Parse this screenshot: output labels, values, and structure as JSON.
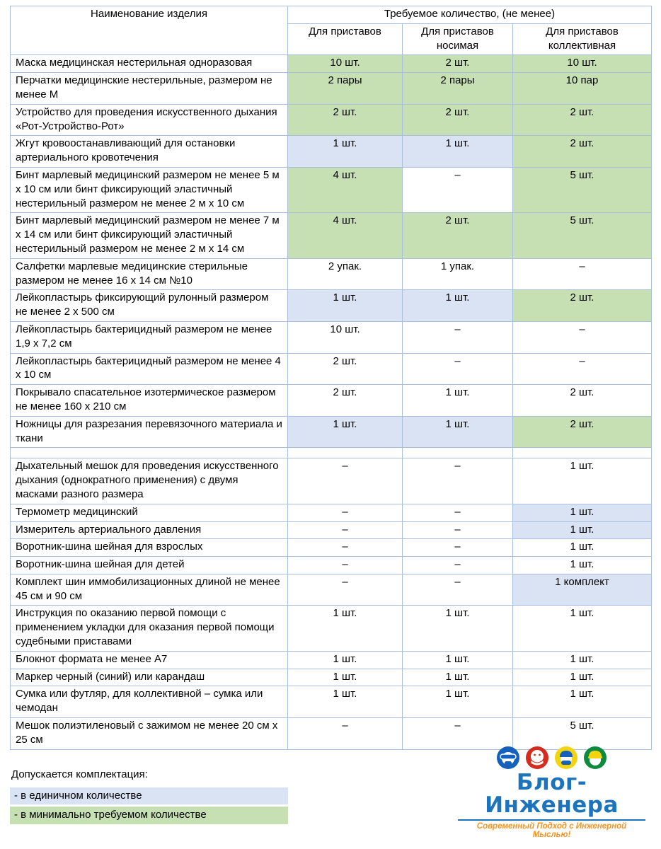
{
  "colors": {
    "cell_green": "#c6e0b4",
    "cell_blue": "#dae3f3",
    "table_border": "#a9bfde",
    "logo_blue": "#1c75bc",
    "logo_orange": "#f7941e"
  },
  "table": {
    "name_header": "Наименование изделия",
    "group_header": "Требуемое количество, (не менее)",
    "col_headers": [
      "Для приставов",
      "Для приставов носимая",
      "Для приставов коллективная"
    ],
    "rows": [
      {
        "name": "Маска медицинская нестерильная одноразовая",
        "cells": [
          [
            "10 шт.",
            "green"
          ],
          [
            "2 шт.",
            "green"
          ],
          [
            "10 шт.",
            "green"
          ]
        ]
      },
      {
        "name": "Перчатки медицинские нестерильные, размером не менее М",
        "cells": [
          [
            "2 пары",
            "green"
          ],
          [
            "2 пары",
            "green"
          ],
          [
            "10 пар",
            "green"
          ]
        ]
      },
      {
        "name": "Устройство для проведения искусственного дыхания «Рот-Устройство-Рот»",
        "cells": [
          [
            "2 шт.",
            "green"
          ],
          [
            "2 шт.",
            "green"
          ],
          [
            "2 шт.",
            "green"
          ]
        ]
      },
      {
        "name": "Жгут кровоостанавливающий для остановки артериального кровотечения",
        "cells": [
          [
            "1 шт.",
            "blue"
          ],
          [
            "1 шт.",
            "blue"
          ],
          [
            "2 шт.",
            "green"
          ]
        ]
      },
      {
        "name": "Бинт марлевый медицинский размером не менее 5 м х 10 см или бинт фиксирующий эластичный нестерильный размером не менее 2 м х 10 см",
        "cells": [
          [
            "4 шт.",
            "green"
          ],
          [
            "–",
            ""
          ],
          [
            "5 шт.",
            "green"
          ]
        ]
      },
      {
        "name": "Бинт марлевый медицинский размером не менее 7 м х 14 см или бинт фиксирующий эластичный нестерильный размером не менее 2 м х 14 см",
        "cells": [
          [
            "4 шт.",
            "green"
          ],
          [
            "2 шт.",
            "green"
          ],
          [
            "5 шт.",
            "green"
          ]
        ]
      },
      {
        "name": "Салфетки марлевые медицинские стерильные размером не менее 16 х 14 см №10",
        "cells": [
          [
            "2 упак.",
            ""
          ],
          [
            "1 упак.",
            ""
          ],
          [
            "–",
            ""
          ]
        ]
      },
      {
        "name": "Лейкопластырь фиксирующий рулонный размером не менее 2 х 500 см",
        "cells": [
          [
            "1 шт.",
            "blue"
          ],
          [
            "1 шт.",
            "blue"
          ],
          [
            "2 шт.",
            "green"
          ]
        ]
      },
      {
        "name": "Лейкопластырь бактерицидный размером не менее 1,9 х 7,2 см",
        "cells": [
          [
            "10 шт.",
            ""
          ],
          [
            "–",
            ""
          ],
          [
            "–",
            ""
          ]
        ]
      },
      {
        "name": "Лейкопластырь бактерицидный размером не менее 4 х 10 см",
        "cells": [
          [
            "2 шт.",
            ""
          ],
          [
            "–",
            ""
          ],
          [
            "–",
            ""
          ]
        ]
      },
      {
        "name": "Покрывало спасательное изотермическое размером не менее 160 х 210 см",
        "cells": [
          [
            "2 шт.",
            ""
          ],
          [
            "1 шт.",
            ""
          ],
          [
            "2 шт.",
            ""
          ]
        ]
      },
      {
        "name": "Ножницы для разрезания перевязочного материала и ткани",
        "cells": [
          [
            "1 шт.",
            "blue"
          ],
          [
            "1 шт.",
            "blue"
          ],
          [
            "2 шт.",
            "green"
          ]
        ]
      },
      {
        "name": "",
        "cells": [
          [
            "",
            ""
          ],
          [
            "",
            ""
          ],
          [
            "",
            ""
          ]
        ]
      },
      {
        "name": "Дыхательный мешок для проведения искусственного дыхания (однократного применения) с двумя масками разного размера",
        "cells": [
          [
            "–",
            ""
          ],
          [
            "–",
            ""
          ],
          [
            "1 шт.",
            ""
          ]
        ]
      },
      {
        "name": "Термометр медицинский",
        "cells": [
          [
            "–",
            ""
          ],
          [
            "–",
            ""
          ],
          [
            "1 шт.",
            "blue"
          ]
        ]
      },
      {
        "name": "Измеритель артериального давления",
        "cells": [
          [
            "–",
            ""
          ],
          [
            "–",
            ""
          ],
          [
            "1 шт.",
            "blue"
          ]
        ]
      },
      {
        "name": "Воротник-шина шейная для взрослых",
        "cells": [
          [
            "–",
            ""
          ],
          [
            "–",
            ""
          ],
          [
            "1 шт.",
            ""
          ]
        ]
      },
      {
        "name": "Воротник-шина шейная для детей",
        "cells": [
          [
            "–",
            ""
          ],
          [
            "–",
            ""
          ],
          [
            "1 шт.",
            ""
          ]
        ]
      },
      {
        "name": "Комплект шин иммобилизационных длиной не менее 45 см и 90 см",
        "cells": [
          [
            "–",
            ""
          ],
          [
            "–",
            ""
          ],
          [
            "1 комплект",
            "blue"
          ]
        ]
      },
      {
        "name": "Инструкция по оказанию первой помощи с применением укладки для оказания первой помощи судебными приставами",
        "cells": [
          [
            "1 шт.",
            ""
          ],
          [
            "1 шт.",
            ""
          ],
          [
            "1 шт.",
            ""
          ]
        ]
      },
      {
        "name": "Блокнот формата не менее А7",
        "cells": [
          [
            "1 шт.",
            ""
          ],
          [
            "1 шт.",
            ""
          ],
          [
            "1 шт.",
            ""
          ]
        ]
      },
      {
        "name": "Маркер черный (синий) или карандаш",
        "cells": [
          [
            "1 шт.",
            ""
          ],
          [
            "1 шт.",
            ""
          ],
          [
            "1 шт.",
            ""
          ]
        ]
      },
      {
        "name": "Сумка или футляр, для коллективной – сумка или чемодан",
        "cells": [
          [
            "1 шт.",
            ""
          ],
          [
            "1 шт.",
            ""
          ],
          [
            "1 шт.",
            ""
          ]
        ]
      },
      {
        "name": "Мешок полиэтиленовый с зажимом не менее 20 см х 25 см",
        "cells": [
          [
            "–",
            ""
          ],
          [
            "–",
            ""
          ],
          [
            "5 шт.",
            ""
          ]
        ]
      }
    ]
  },
  "legend": {
    "title": "Допускается комплектация:",
    "items": [
      {
        "label": "-  в единичном количестве",
        "bg": "blue"
      },
      {
        "label": "- в минимально требуемом количестве",
        "bg": "green"
      }
    ]
  },
  "logo": {
    "title": "Блог-Инженера",
    "tagline": "Современный Подход с Инженерной Мыслью!",
    "icons": [
      "ppe-goggles-blue-icon",
      "ppe-mask-red-icon",
      "ppe-helmet-yellow-icon",
      "ppe-helmet-green-icon"
    ]
  }
}
